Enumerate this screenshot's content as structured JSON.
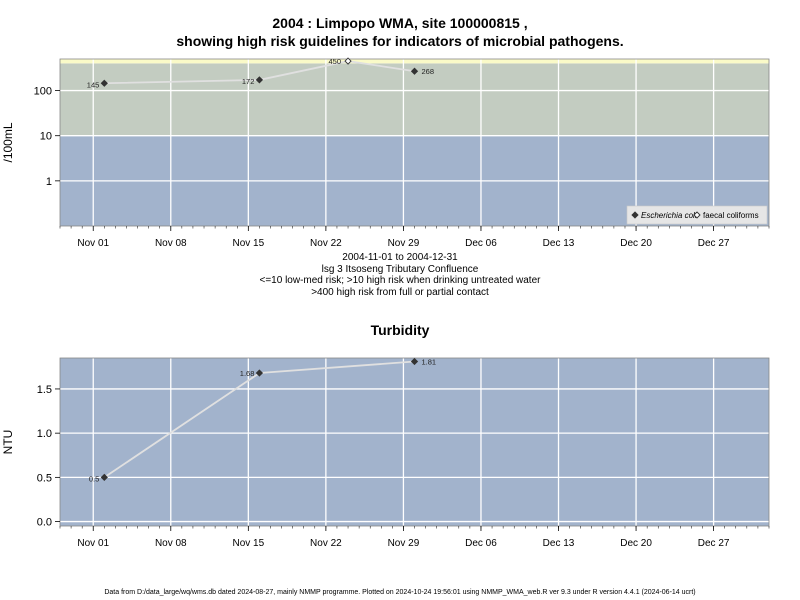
{
  "page": {
    "title_line1": "2004 : Limpopo WMA, site 100000815 ,",
    "title_line2": "showing high risk guidelines for indicators of microbial pathogens.",
    "caption_lines": [
      "2004-11-01 to 2004-12-31",
      "lsg 3 Itsoseng Tributary Confluence",
      "<=10 low-med risk; >10 high risk when drinking untreated water",
      ">400 high risk from full or partial contact"
    ],
    "footer": "Data from D:/data_large/wq/wms.db dated 2024-08-27, mainly NMMP programme. Plotted on 2024-10-24 19:56:01 using NMMP_WMA_web.R ver 9.3 under R version 4.4.1 (2024-06-14 ucrt)"
  },
  "colors": {
    "low_band": "#a2b3cc",
    "mid_band": "#c3ccc1",
    "high_band": "#fafac8",
    "grid": "#ffffff",
    "line": "#e0e0e0"
  },
  "chart_data": [
    {
      "type": "line",
      "title": "",
      "xlabel": "",
      "ylabel": "/100mL",
      "y_scale": "log",
      "xlim": [
        "2004-10-29",
        "2005-01-01"
      ],
      "ylim": [
        0.1,
        500
      ],
      "x_ticks": [
        "Nov 01",
        "Nov 08",
        "Nov 15",
        "Nov 22",
        "Nov 29",
        "Dec 06",
        "Dec 13",
        "Dec 20",
        "Dec 27"
      ],
      "x_tick_dates": [
        "2004-11-01",
        "2004-11-08",
        "2004-11-15",
        "2004-11-22",
        "2004-11-29",
        "2004-12-06",
        "2004-12-13",
        "2004-12-20",
        "2004-12-27"
      ],
      "y_ticks": [
        1,
        10,
        100
      ],
      "y_tick_labels": [
        "1",
        "10",
        "100"
      ],
      "bands": [
        {
          "from": 0.1,
          "to": 10,
          "color_key": "low_band"
        },
        {
          "from": 10,
          "to": 400,
          "color_key": "mid_band"
        },
        {
          "from": 400,
          "to": 500,
          "color_key": "high_band"
        }
      ],
      "grid": true,
      "legend_position": "bottom-right",
      "series": [
        {
          "name": "Escherichia coli",
          "marker": "filled-diamond",
          "points": [
            {
              "x": "2004-11-02",
              "y": 145,
              "label": "145"
            },
            {
              "x": "2004-11-16",
              "y": 172,
              "label": "172"
            },
            {
              "x": "2004-11-30",
              "y": 268,
              "label": "268"
            }
          ]
        },
        {
          "name": "faecal coliforms",
          "marker": "open-diamond",
          "points": [
            {
              "x": "2004-11-24",
              "y": 450,
              "label": "450"
            }
          ]
        }
      ],
      "connector_line_order": [
        "2004-11-02",
        "2004-11-16",
        "2004-11-24",
        "2004-11-30"
      ]
    },
    {
      "type": "line",
      "title": "Turbidity",
      "xlabel": "",
      "ylabel": "NTU",
      "y_scale": "linear",
      "xlim": [
        "2004-10-29",
        "2005-01-01"
      ],
      "ylim": [
        -0.05,
        1.85
      ],
      "x_ticks": [
        "Nov 01",
        "Nov 08",
        "Nov 15",
        "Nov 22",
        "Nov 29",
        "Dec 06",
        "Dec 13",
        "Dec 20",
        "Dec 27"
      ],
      "x_tick_dates": [
        "2004-11-01",
        "2004-11-08",
        "2004-11-15",
        "2004-11-22",
        "2004-11-29",
        "2004-12-06",
        "2004-12-13",
        "2004-12-20",
        "2004-12-27"
      ],
      "y_ticks": [
        0,
        0.5,
        1,
        1.5
      ],
      "y_tick_labels": [
        "0.0",
        "0.5",
        "1.0",
        "1.5"
      ],
      "bands": [
        {
          "from": -0.05,
          "to": 1.85,
          "color_key": "low_band"
        }
      ],
      "grid": true,
      "series": [
        {
          "name": "",
          "marker": "filled-diamond",
          "points": [
            {
              "x": "2004-11-02",
              "y": 0.5,
              "label": "0.5"
            },
            {
              "x": "2004-11-16",
              "y": 1.68,
              "label": "1.68"
            },
            {
              "x": "2004-11-30",
              "y": 1.81,
              "label": "1.81"
            }
          ]
        }
      ]
    }
  ]
}
